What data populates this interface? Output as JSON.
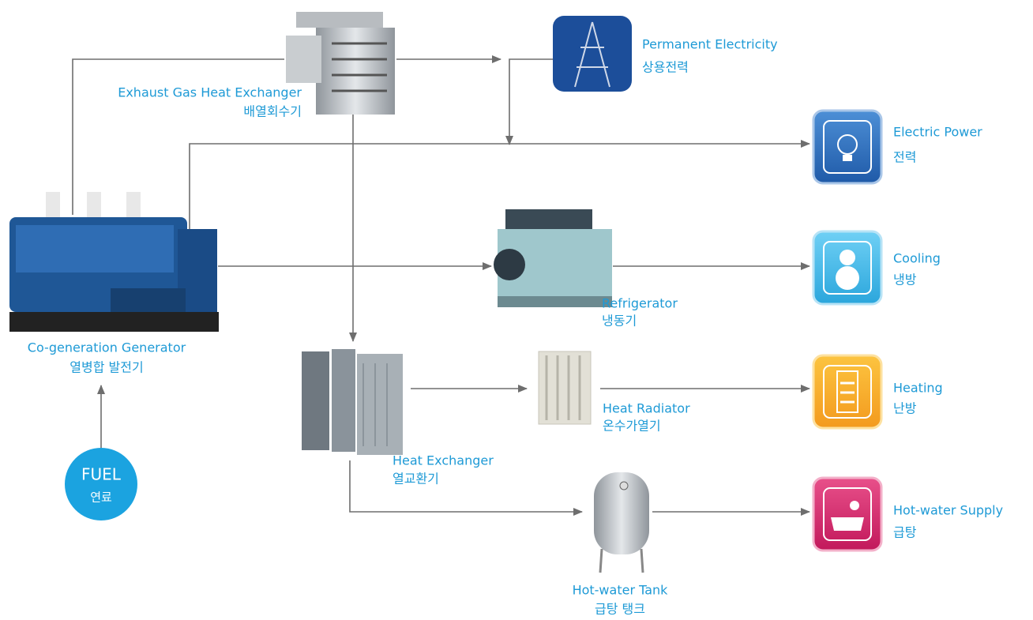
{
  "nodes": [
    {
      "label": "Co-generation Generator",
      "label_ko": "열병합 발전기"
    },
    {
      "label": "FUEL",
      "label_ko": "연료"
    },
    {
      "label": "Exhaust Gas Heat Exchanger",
      "label_ko": "배열회수기"
    },
    {
      "label": "Permanent Electricity",
      "label_ko": "상용전력"
    },
    {
      "label": "Electric Power",
      "label_ko": "전력"
    },
    {
      "label": "Refrigerator",
      "label_ko": "냉동기"
    },
    {
      "label": "Cooling",
      "label_ko": "냉방"
    },
    {
      "label": "Heat Exchanger",
      "label_ko": "열교환기"
    },
    {
      "label": "Heat Radiator",
      "label_ko": "온수가열기"
    },
    {
      "label": "Heating",
      "label_ko": "난방"
    },
    {
      "label": "Hot-water Tank",
      "label_ko": "급탕 탱크"
    },
    {
      "label": "Hot-water Supply",
      "label_ko": "급탕"
    }
  ]
}
